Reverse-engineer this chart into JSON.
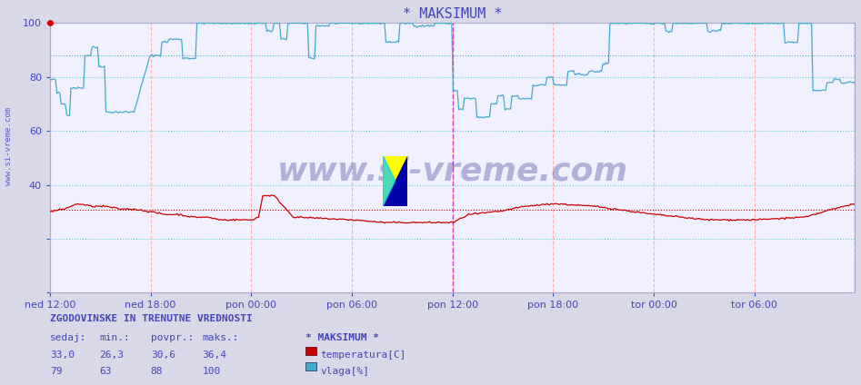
{
  "title": "* MAKSIMUM *",
  "title_color": "#4444bb",
  "bg_color": "#d8d8e8",
  "plot_bg_color": "#f0f0ff",
  "ylim": [
    0,
    100
  ],
  "x_labels": [
    "ned 12:00",
    "ned 18:00",
    "pon 00:00",
    "pon 06:00",
    "pon 12:00",
    "pon 18:00",
    "tor 00:00",
    "tor 06:00"
  ],
  "n_points": 576,
  "temp_color": "#cc0000",
  "vlaga_color": "#44aacc",
  "grid_h_color": "#44cccc",
  "grid_v_color": "#ffaaaa",
  "vline_color": "#cc44cc",
  "watermark": "www.si-vreme.com",
  "watermark_color": "#222288",
  "legend_title": "* MAKSIMUM *",
  "temp_label": "temperatura[C]",
  "vlaga_label": "vlaga[%]",
  "temp_sedaj": "33,0",
  "temp_min": "26,3",
  "temp_povpr": "30,6",
  "temp_maks": "36,4",
  "vlaga_sedaj": "79",
  "vlaga_min": "63",
  "vlaga_povpr": "88",
  "vlaga_maks": "100",
  "footer_title": "ZGODOVINSKE IN TRENUTNE VREDNOSTI",
  "col_headers": [
    "sedaj:",
    "min.:",
    "povpr.:",
    "maks.:"
  ],
  "temp_avg": 30.6,
  "vlaga_avg": 88
}
